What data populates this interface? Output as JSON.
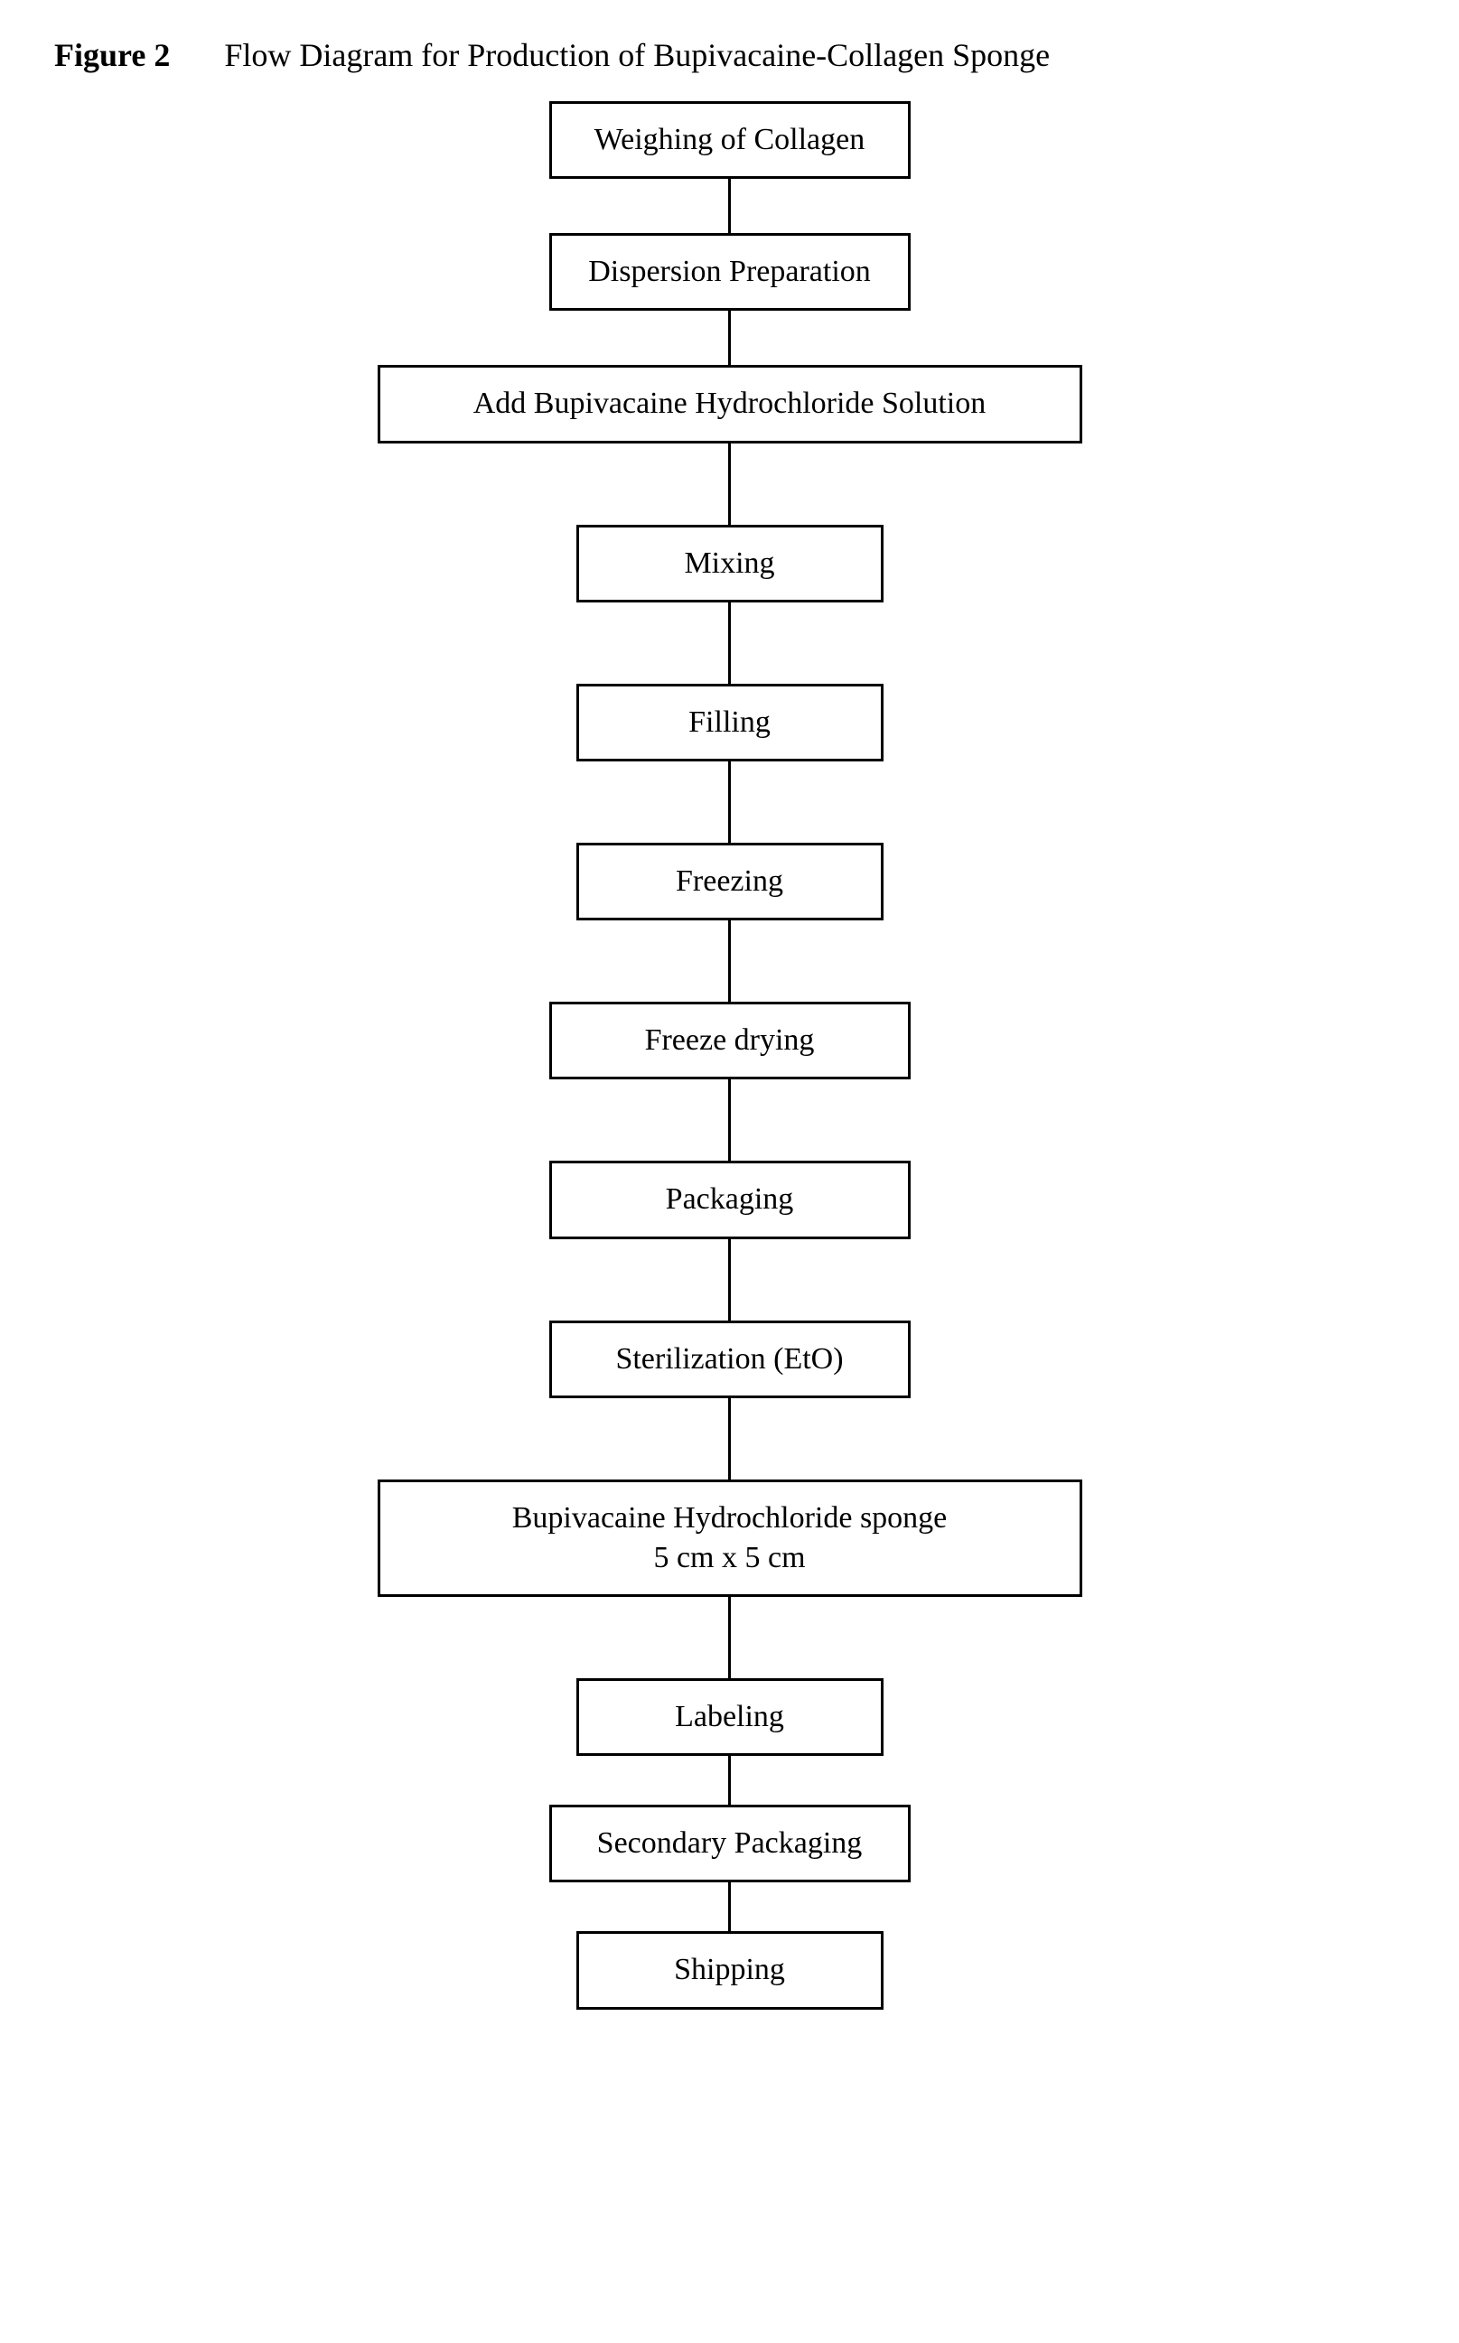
{
  "header": {
    "figure_label": "Figure 2",
    "figure_title": "Flow Diagram for Production of Bupivacaine-Collagen Sponge"
  },
  "flowchart": {
    "type": "flowchart",
    "orientation": "vertical",
    "background_color": "#ffffff",
    "box_border_color": "#000000",
    "box_border_width": 3,
    "box_background_color": "#ffffff",
    "text_color": "#000000",
    "font_family": "Times New Roman",
    "font_size": 34,
    "connector_color": "#000000",
    "connector_width": 3,
    "nodes": [
      {
        "id": 0,
        "label": "Weighing of Collagen",
        "width_class": "normal"
      },
      {
        "id": 1,
        "label": "Dispersion Preparation",
        "width_class": "normal"
      },
      {
        "id": 2,
        "label": "Add Bupivacaine Hydrochloride Solution",
        "width_class": "wide"
      },
      {
        "id": 3,
        "label": "Mixing",
        "width_class": "narrow"
      },
      {
        "id": 4,
        "label": "Filling",
        "width_class": "narrow"
      },
      {
        "id": 5,
        "label": "Freezing",
        "width_class": "narrow"
      },
      {
        "id": 6,
        "label": "Freeze drying",
        "width_class": "normal"
      },
      {
        "id": 7,
        "label": "Packaging",
        "width_class": "normal"
      },
      {
        "id": 8,
        "label": "Sterilization (EtO)",
        "width_class": "normal"
      },
      {
        "id": 9,
        "label": "Bupivacaine Hydrochloride sponge\n5 cm x 5 cm",
        "width_class": "wide",
        "multiline": true
      },
      {
        "id": 10,
        "label": "Labeling",
        "width_class": "narrow"
      },
      {
        "id": 11,
        "label": "Secondary Packaging",
        "width_class": "normal"
      },
      {
        "id": 12,
        "label": "Shipping",
        "width_class": "narrow"
      }
    ],
    "connectors": [
      {
        "from": 0,
        "to": 1,
        "height_class": "normal"
      },
      {
        "from": 1,
        "to": 2,
        "height_class": "normal"
      },
      {
        "from": 2,
        "to": 3,
        "height_class": "tall"
      },
      {
        "from": 3,
        "to": 4,
        "height_class": "tall"
      },
      {
        "from": 4,
        "to": 5,
        "height_class": "tall"
      },
      {
        "from": 5,
        "to": 6,
        "height_class": "tall"
      },
      {
        "from": 6,
        "to": 7,
        "height_class": "tall"
      },
      {
        "from": 7,
        "to": 8,
        "height_class": "tall"
      },
      {
        "from": 8,
        "to": 9,
        "height_class": "tall"
      },
      {
        "from": 9,
        "to": 10,
        "height_class": "tall"
      },
      {
        "from": 10,
        "to": 11,
        "height_class": "short"
      },
      {
        "from": 11,
        "to": 12,
        "height_class": "short"
      }
    ]
  }
}
